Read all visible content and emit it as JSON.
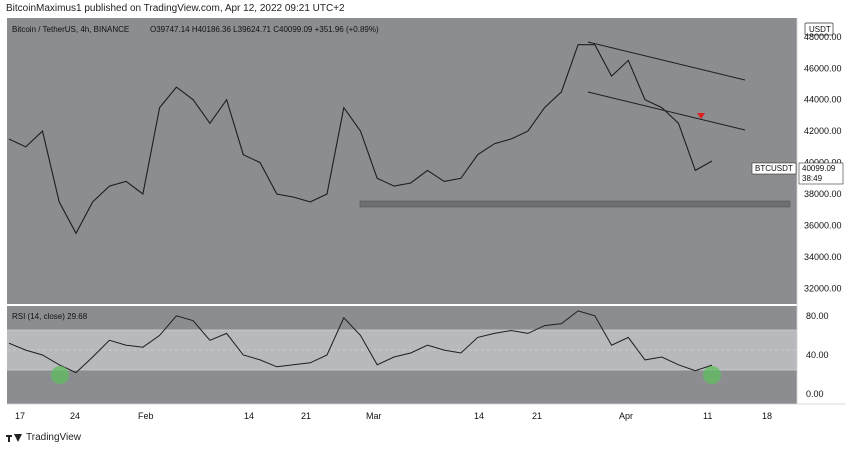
{
  "header": {
    "published_text": "BitcoinMaximus1 published on TradingView.com, Apr 12, 2022 09:21 UTC+2"
  },
  "footer": {
    "brand": "TradingView"
  },
  "chart": {
    "symbol_text": "Bitcoin / TetherUS, 4h, BINANCE",
    "ohlc_text": "O39747.14 H40186.36 L39624.71 C40099.09 +351.96 (+0.89%)",
    "currency_badge": "USDT",
    "price_tag_symbol": "BTCUSDT",
    "price_tag_value": "40099.09",
    "price_tag_countdown": "38:49",
    "rsi_label": "RSI (14, close) 29.68"
  },
  "chart_data": {
    "type": "line",
    "price_panel": {
      "series": "BTCUSDT 4h",
      "y_ticks": [
        "48000.00",
        "46000.00",
        "44000.00",
        "42000.00",
        "40000.00",
        "38000.00",
        "36000.00",
        "34000.00",
        "32000.00"
      ],
      "ylim": [
        31000,
        49200
      ],
      "last_price": 40099.09,
      "x": [
        "Jan 17",
        "Jan 20",
        "Jan 22",
        "Jan 24",
        "Jan 26",
        "Jan 28",
        "Jan 31",
        "Feb 2",
        "Feb 4",
        "Feb 6",
        "Feb 8",
        "Feb 10",
        "Feb 12",
        "Feb 15",
        "Feb 17",
        "Feb 19",
        "Feb 22",
        "Feb 24",
        "Feb 26",
        "Feb 28",
        "Mar 1",
        "Mar 3",
        "Mar 5",
        "Mar 7",
        "Mar 9",
        "Mar 11",
        "Mar 13",
        "Mar 15",
        "Mar 17",
        "Mar 19",
        "Mar 21",
        "Mar 23",
        "Mar 25",
        "Mar 27",
        "Mar 28",
        "Mar 30",
        "Apr 1",
        "Apr 3",
        "Apr 5",
        "Apr 7",
        "Apr 9",
        "Apr 11",
        "Apr 12"
      ],
      "values": [
        41500,
        41000,
        42000,
        37500,
        35500,
        37500,
        38500,
        38800,
        38000,
        43500,
        44800,
        44000,
        42500,
        44000,
        40500,
        40000,
        38000,
        37800,
        37500,
        38000,
        43500,
        42000,
        39000,
        38500,
        38700,
        39500,
        38800,
        39000,
        40500,
        41200,
        41500,
        42000,
        43500,
        44500,
        47500,
        47500,
        45500,
        46500,
        44000,
        43500,
        42500,
        39500,
        40099
      ]
    },
    "rsi_panel": {
      "series": "RSI (14, close)",
      "y_ticks": [
        "80.00",
        "40.00",
        "0.00"
      ],
      "ylim": [
        -10,
        90
      ],
      "band": [
        30,
        70
      ],
      "last_value": 29.68,
      "x": [
        "Jan 17",
        "Jan 20",
        "Jan 22",
        "Jan 24",
        "Jan 26",
        "Jan 28",
        "Jan 31",
        "Feb 2",
        "Feb 4",
        "Feb 6",
        "Feb 8",
        "Feb 10",
        "Feb 12",
        "Feb 15",
        "Feb 17",
        "Feb 19",
        "Feb 22",
        "Feb 24",
        "Feb 26",
        "Feb 28",
        "Mar 1",
        "Mar 3",
        "Mar 5",
        "Mar 7",
        "Mar 9",
        "Mar 11",
        "Mar 13",
        "Mar 15",
        "Mar 17",
        "Mar 19",
        "Mar 21",
        "Mar 23",
        "Mar 25",
        "Mar 27",
        "Mar 28",
        "Mar 30",
        "Apr 1",
        "Apr 3",
        "Apr 5",
        "Apr 7",
        "Apr 9",
        "Apr 11",
        "Apr 12"
      ],
      "values": [
        52,
        45,
        40,
        30,
        22,
        38,
        55,
        50,
        48,
        60,
        80,
        75,
        55,
        62,
        40,
        35,
        28,
        30,
        32,
        40,
        78,
        60,
        30,
        38,
        42,
        50,
        45,
        42,
        58,
        62,
        65,
        62,
        70,
        72,
        85,
        80,
        50,
        58,
        35,
        38,
        30,
        24,
        29.68
      ]
    },
    "x_tick_labels": [
      "17",
      "24",
      "Feb",
      "14",
      "21",
      "Mar",
      "14",
      "21",
      "Apr",
      "11",
      "18"
    ],
    "annotations": [
      {
        "type": "channel",
        "description": "descending parallel channel from late March"
      },
      {
        "type": "support_zone",
        "level": 37700
      },
      {
        "type": "marker",
        "shape": "red-triangle",
        "price": 43600
      },
      {
        "type": "highlight",
        "panel": "rsi",
        "shape": "green-circle",
        "at": "Jan 24"
      },
      {
        "type": "highlight",
        "panel": "rsi",
        "shape": "green-circle",
        "at": "Apr 12"
      }
    ],
    "colors": {
      "background": "#8c8d91",
      "price_line": "#1e1e1e",
      "rsi_band": "#b8b9bc",
      "marker": "#e01e1e",
      "highlight": "#5fbf5f",
      "support_zone": "#6e6f73"
    }
  }
}
